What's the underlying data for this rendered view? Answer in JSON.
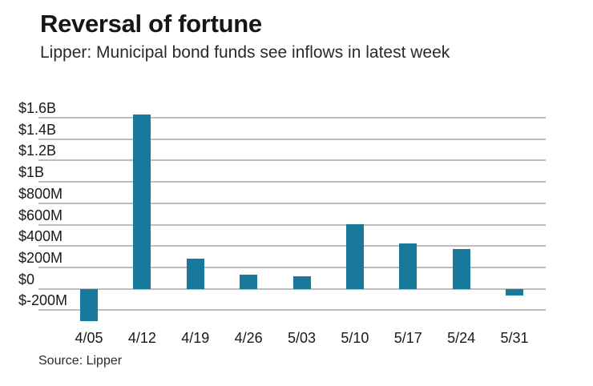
{
  "header": {
    "title": "Reversal of fortune",
    "subtitle": "Lipper: Municipal bond funds see inflows in latest week"
  },
  "source": "Source: Lipper",
  "colors": {
    "bar": "#18799c",
    "gridline": "#bdbdbd",
    "title_text": "#161616",
    "body_text": "#191919"
  },
  "chart_data": {
    "type": "bar",
    "title": "Reversal of fortune",
    "subtitle": "Lipper: Municipal bond funds see inflows in latest week",
    "source": "Source: Lipper",
    "unit": "USD millions",
    "categories": [
      "4/05",
      "4/12",
      "4/19",
      "4/26",
      "5/03",
      "5/10",
      "5/17",
      "5/24",
      "5/31"
    ],
    "values": [
      -300,
      1630,
      285,
      135,
      115,
      605,
      425,
      375,
      -65
    ],
    "xlabel": "",
    "ylabel": "",
    "ylim": [
      -320,
      1660
    ],
    "yticks": [
      {
        "value": 1600,
        "label": "$1.6B"
      },
      {
        "value": 1400,
        "label": "$1.4B"
      },
      {
        "value": 1200,
        "label": "$1.2B"
      },
      {
        "value": 1000,
        "label": "$1B"
      },
      {
        "value": 800,
        "label": "$800M"
      },
      {
        "value": 600,
        "label": "$600M"
      },
      {
        "value": 400,
        "label": "$400M"
      },
      {
        "value": 200,
        "label": "$200M"
      },
      {
        "value": 0,
        "label": "$0"
      },
      {
        "value": -200,
        "label": "$-200M"
      }
    ],
    "grid": "horizontal",
    "legend_position": "none"
  }
}
